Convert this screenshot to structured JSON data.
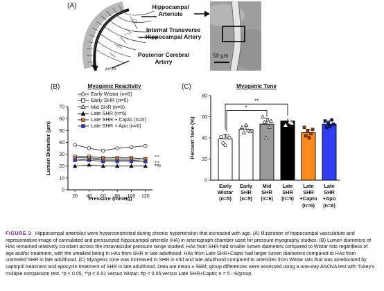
{
  "panel_a": {
    "letter": "(A)",
    "labels": [
      "Hippocampal Arteriole",
      "Internal Transverse Hippocampal Artery",
      "Posterior Cerebral Artery"
    ],
    "label_lines": [
      [
        "Hippocampal",
        "Arteriole"
      ],
      [
        "Internal Transverse",
        "Hippocampal Artery"
      ],
      [
        "Posterior Cerebral",
        "Artery"
      ]
    ],
    "small_label": "Amyg.",
    "scale_bar": "50 µm"
  },
  "panel_b": {
    "letter": "(B)",
    "legend_tags": [
      "Early Wistar",
      "Early SHR",
      "Mid SHR",
      "Late SHR",
      "Late SHR + Capto",
      "Late SHR + Apo"
    ],
    "legend_ns": [
      "(n=5)",
      "(n=5)",
      "(n=6)",
      "(n=5)",
      "(n=6)",
      "(n=6)"
    ],
    "right_marks": [
      "***",
      "***",
      "***",
      "*+#"
    ]
  },
  "panel_c": {
    "letter": "(C)",
    "cat_lines": [
      [
        "Early",
        "Wistar",
        "(n=5)"
      ],
      [
        "Early",
        "SHR",
        "(n=5)"
      ],
      [
        "Mid",
        "SHR",
        "(n=6)"
      ],
      [
        "Late",
        "SHR",
        "(n=5)"
      ],
      [
        "Late",
        "SHR",
        "+Capto",
        "(n=6)"
      ],
      [
        "Late",
        "SHR",
        "+Apo",
        "(n=6)"
      ]
    ],
    "sig_marks": [
      "**",
      "*"
    ]
  },
  "chart_data": [
    {
      "type": "line",
      "title": "Myogenic Reactivity",
      "xlabel": "Pressure (mmHg)",
      "ylabel": "Lumen Diameter (μm)",
      "x": [
        20,
        40,
        60,
        80,
        100,
        120
      ],
      "xticks": [
        "20",
        "40",
        "60",
        "80",
        "100",
        "120"
      ],
      "yticks": [
        "0",
        "10",
        "20",
        "30",
        "40",
        "50",
        "60",
        "70"
      ],
      "ylim": [
        0,
        70
      ],
      "legend_position": "top-left",
      "series": [
        {
          "name": "Early Wistar (n=5)",
          "values": [
            38,
            35,
            33,
            35,
            36,
            37
          ],
          "color": "#333333",
          "marker": "circle-open"
        },
        {
          "name": "Early SHR (n=5)",
          "values": [
            28,
            28,
            27,
            27,
            27,
            26
          ],
          "color": "#333333",
          "marker": "square-open"
        },
        {
          "name": "Mid SHR (n=6)",
          "values": [
            25,
            26,
            25,
            25,
            25,
            24
          ],
          "color": "#333333",
          "marker": "triangle-open"
        },
        {
          "name": "Late SHR (n=5)",
          "values": [
            20,
            21,
            20,
            20,
            20,
            20
          ],
          "color": "#111111",
          "marker": "triangle-filled"
        },
        {
          "name": "Late SHR + Capto (n=6)",
          "values": [
            27,
            27,
            26,
            26,
            26,
            26
          ],
          "color": "#e87722",
          "marker": "square-filled"
        },
        {
          "name": "Late SHR + Apo (n=6)",
          "values": [
            25,
            25,
            24,
            24,
            24,
            24
          ],
          "color": "#2b3bd9",
          "marker": "square-filled"
        }
      ]
    },
    {
      "type": "bar",
      "title": "Myogenic Tone",
      "ylabel": "Percent Tone (%)",
      "categories": [
        "Early Wistar (n=5)",
        "Early SHR (n=5)",
        "Mid SHR (n=6)",
        "Late SHR (n=5)",
        "Late SHR +Capto (n=6)",
        "Late SHR +Apo (n=6)"
      ],
      "values": [
        39,
        48,
        53,
        56,
        45,
        53
      ],
      "errors": [
        4,
        4,
        5,
        3,
        3,
        3
      ],
      "colors": [
        "#ffffff",
        "#ffffff",
        "#9a9a9a",
        "#000000",
        "#ff8a1c",
        "#2f3ef2"
      ],
      "yticks": [
        "0",
        "20",
        "40",
        "60",
        "80"
      ],
      "ylim": [
        0,
        80
      ],
      "points": [
        [
          41,
          35,
          33,
          42,
          40
        ],
        [
          50,
          45,
          52,
          47,
          46
        ],
        [
          60,
          55,
          40,
          57,
          50,
          56
        ],
        [
          58,
          52,
          60,
          55,
          54
        ],
        [
          50,
          42,
          47,
          40,
          44,
          48
        ],
        [
          56,
          50,
          54,
          51,
          57,
          53
        ]
      ]
    }
  ],
  "caption": {
    "figure_label": "FIGURE 3",
    "text": "Hippocampal arterioles were hyperconstricted during chronic hypertension that increased with age. (A) Illustration of hippocampal vasculature and representative image of cannulated and pressurized hippocampal arteriole (HA) in arteriograph chamber used for pressure myography studies. (B) Lumen diameters of HAs remained relatively constant across the intravascular pressure range studied. HAs from SHR had smaller lumen diameters compared to Wistar rats regardless of age and/or treatment, with the smallest being in HAs from SHR in late adulthood. HAs from Late SHR+Capto had larger lumen diameters compared to HAs from untreated SHR in late adulthood. (C) Myogenic tone was increased in SHR in mid and late adulthood compared to arterioles from Wistar rats that was ameliorated by captopril treatment and apocynin treatment of SHR in late adulthood. Data are mean ± SEM; group differences were assessed using a one-way ANOVA test with Tukey's multiple comparison test. *p < 0.05, **p < 0.01 versus Wistar; #p < 0.05 versus Late SHR+Capto; n = 5 - 6/group."
  }
}
